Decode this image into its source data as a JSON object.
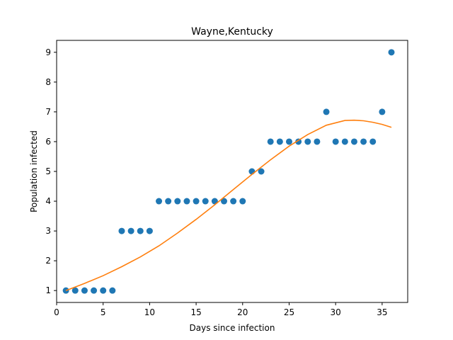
{
  "chart_data": {
    "type": "scatter",
    "title": "Wayne,Kentucky",
    "xlabel": "Days since infection",
    "ylabel": "Population infected",
    "xlim": [
      0,
      37.75
    ],
    "ylim": [
      0.6,
      9.4
    ],
    "xticks": [
      0,
      5,
      10,
      15,
      20,
      25,
      30,
      35
    ],
    "yticks": [
      1,
      2,
      3,
      4,
      5,
      6,
      7,
      8,
      9
    ],
    "grid": false,
    "colors": {
      "points": "#1f77b4",
      "fit": "#ff7f0e"
    },
    "series": [
      {
        "type": "scatter",
        "x": [
          1,
          2,
          3,
          4,
          5,
          6,
          7,
          8,
          9,
          10,
          11,
          12,
          13,
          14,
          15,
          16,
          17,
          18,
          19,
          20,
          21,
          22,
          23,
          24,
          25,
          26,
          27,
          28,
          29,
          30,
          31,
          32,
          33,
          34,
          35,
          36
        ],
        "y": [
          1,
          1,
          1,
          1,
          1,
          1,
          3,
          3,
          3,
          3,
          4,
          4,
          4,
          4,
          4,
          4,
          4,
          4,
          4,
          4,
          5,
          5,
          6,
          6,
          6,
          6,
          6,
          6,
          7,
          6,
          6,
          6,
          6,
          6,
          7,
          9
        ]
      },
      {
        "type": "line",
        "x": [
          1,
          3,
          5,
          7,
          9,
          11,
          13,
          15,
          17,
          19,
          21,
          23,
          25,
          27,
          29,
          31,
          32,
          33,
          34,
          35,
          36
        ],
        "y": [
          1.0,
          1.24,
          1.5,
          1.8,
          2.13,
          2.5,
          2.93,
          3.39,
          3.88,
          4.39,
          4.9,
          5.39,
          5.85,
          6.24,
          6.55,
          6.71,
          6.72,
          6.7,
          6.65,
          6.58,
          6.48
        ]
      }
    ]
  }
}
